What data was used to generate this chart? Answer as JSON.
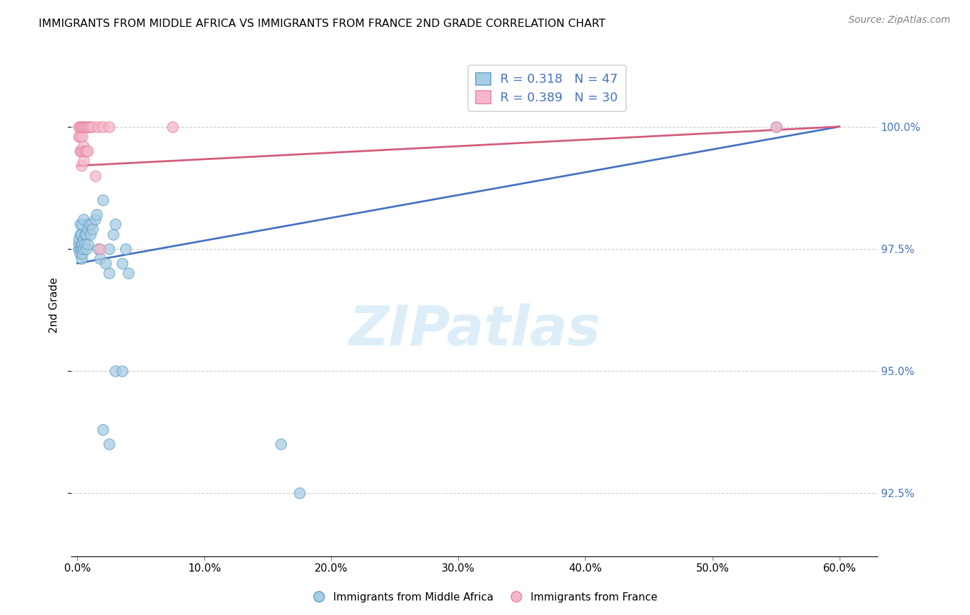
{
  "title": "IMMIGRANTS FROM MIDDLE AFRICA VS IMMIGRANTS FROM FRANCE 2ND GRADE CORRELATION CHART",
  "source": "Source: ZipAtlas.com",
  "xlabel_ticks": [
    "0.0%",
    "10.0%",
    "20.0%",
    "30.0%",
    "40.0%",
    "50.0%",
    "60.0%"
  ],
  "xlabel_values": [
    0.0,
    0.1,
    0.2,
    0.3,
    0.4,
    0.5,
    0.6
  ],
  "ylabel_ticks": [
    "92.5%",
    "95.0%",
    "97.5%",
    "100.0%"
  ],
  "ylabel_values": [
    92.5,
    95.0,
    97.5,
    100.0
  ],
  "xlim_min": -0.005,
  "xlim_max": 0.63,
  "ylim_min": 91.2,
  "ylim_max": 101.5,
  "ylabel": "2nd Grade",
  "legend_blue_label": "Immigrants from Middle Africa",
  "legend_pink_label": "Immigrants from France",
  "blue_R": "0.318",
  "blue_N": "47",
  "pink_R": "0.389",
  "pink_N": "30",
  "blue_color": "#a8cce4",
  "pink_color": "#f4b8ca",
  "blue_edge_color": "#5b9ec9",
  "pink_edge_color": "#e8829a",
  "blue_line_color": "#4472c4",
  "pink_line_color": "#d45b7a",
  "right_tick_color": "#4472c4",
  "watermark_text": "ZIPatlas",
  "watermark_color": "#ddeef8",
  "blue_points_x": [
    0.001,
    0.001,
    0.001,
    0.002,
    0.002,
    0.002,
    0.002,
    0.003,
    0.003,
    0.003,
    0.003,
    0.004,
    0.004,
    0.004,
    0.005,
    0.005,
    0.005,
    0.006,
    0.006,
    0.007,
    0.007,
    0.008,
    0.008,
    0.009,
    0.01,
    0.011,
    0.012,
    0.014,
    0.015,
    0.016,
    0.018,
    0.02,
    0.022,
    0.025,
    0.028,
    0.03,
    0.035,
    0.038,
    0.04,
    0.025,
    0.03,
    0.035,
    0.02,
    0.025,
    0.16,
    0.175,
    0.55
  ],
  "blue_points_y": [
    97.5,
    97.6,
    97.7,
    97.4,
    97.5,
    97.8,
    98.0,
    97.3,
    97.5,
    97.6,
    97.8,
    97.4,
    97.6,
    98.0,
    97.5,
    97.7,
    98.1,
    97.6,
    97.8,
    97.5,
    97.8,
    97.6,
    97.9,
    98.0,
    97.8,
    98.0,
    97.9,
    98.1,
    98.2,
    97.5,
    97.3,
    98.5,
    97.2,
    97.5,
    97.8,
    98.0,
    97.2,
    97.5,
    97.0,
    97.0,
    95.0,
    95.0,
    93.8,
    93.5,
    93.5,
    92.5,
    100.0
  ],
  "pink_points_x": [
    0.001,
    0.001,
    0.002,
    0.002,
    0.002,
    0.003,
    0.003,
    0.003,
    0.004,
    0.004,
    0.004,
    0.005,
    0.005,
    0.005,
    0.006,
    0.006,
    0.007,
    0.007,
    0.008,
    0.008,
    0.009,
    0.01,
    0.012,
    0.014,
    0.016,
    0.018,
    0.02,
    0.025,
    0.075,
    0.55
  ],
  "pink_points_y": [
    99.8,
    100.0,
    99.5,
    99.8,
    100.0,
    99.2,
    99.5,
    100.0,
    99.5,
    99.8,
    100.0,
    99.3,
    99.6,
    100.0,
    99.5,
    100.0,
    99.5,
    100.0,
    99.5,
    100.0,
    100.0,
    100.0,
    100.0,
    99.0,
    100.0,
    97.5,
    100.0,
    100.0,
    100.0,
    100.0
  ],
  "blue_trendline_x": [
    0.0,
    0.6
  ],
  "blue_trendline_y": [
    97.2,
    100.0
  ],
  "pink_trendline_x": [
    0.0,
    0.6
  ],
  "pink_trendline_y": [
    99.2,
    100.0
  ]
}
